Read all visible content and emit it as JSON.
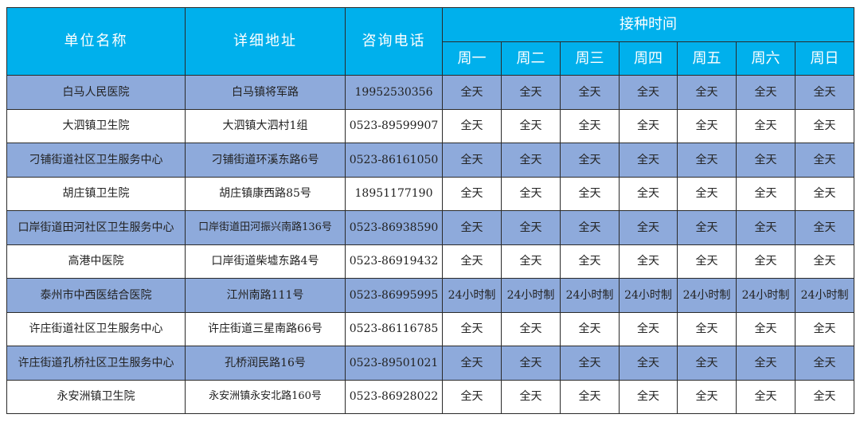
{
  "colors": {
    "header": "#00b0ec",
    "shaded_row": "#8eaadb"
  },
  "headers": {
    "name": "单位名称",
    "address": "详细地址",
    "phone": "咨询电话",
    "schedule": "接种时间",
    "days": [
      "周一",
      "周二",
      "周三",
      "周四",
      "周五",
      "周六",
      "周日"
    ]
  },
  "rows": [
    {
      "name": "白马人民医院",
      "address": "白马镇将军路",
      "phone": "19952530356",
      "hours": "全天"
    },
    {
      "name": "大泗镇卫生院",
      "address": "大泗镇大泗村1组",
      "phone": "0523-89599907",
      "hours": "全天"
    },
    {
      "name": "刁铺街道社区卫生服务中心",
      "address": "刁铺街道环溪东路6号",
      "phone": "0523-86161050",
      "hours": "全天"
    },
    {
      "name": "胡庄镇卫生院",
      "address": "胡庄镇康西路85号",
      "phone": "18951177190",
      "hours": "全天"
    },
    {
      "name": "口岸街道田河社区卫生服务中心",
      "address": "口岸街道田河振兴南路136号",
      "phone": "0523-86938590",
      "hours": "全天"
    },
    {
      "name": "高港中医院",
      "address": "口岸街道柴墟东路4号",
      "phone": "0523-86919432",
      "hours": "全天"
    },
    {
      "name": "泰州市中西医结合医院",
      "address": "江州南路111号",
      "phone": "0523-86995995",
      "hours": "24小时制"
    },
    {
      "name": "许庄街道社区卫生服务中心",
      "address": "许庄街道三星南路66号",
      "phone": "0523-86116785",
      "hours": "全天"
    },
    {
      "name": "许庄街道孔桥社区卫生服务中心",
      "address": "孔桥润民路16号",
      "phone": "0523-89501021",
      "hours": "全天"
    },
    {
      "name": "永安洲镇卫生院",
      "address": "永安洲镇永安北路160号",
      "phone": "0523-86928022",
      "hours": "全天"
    }
  ]
}
